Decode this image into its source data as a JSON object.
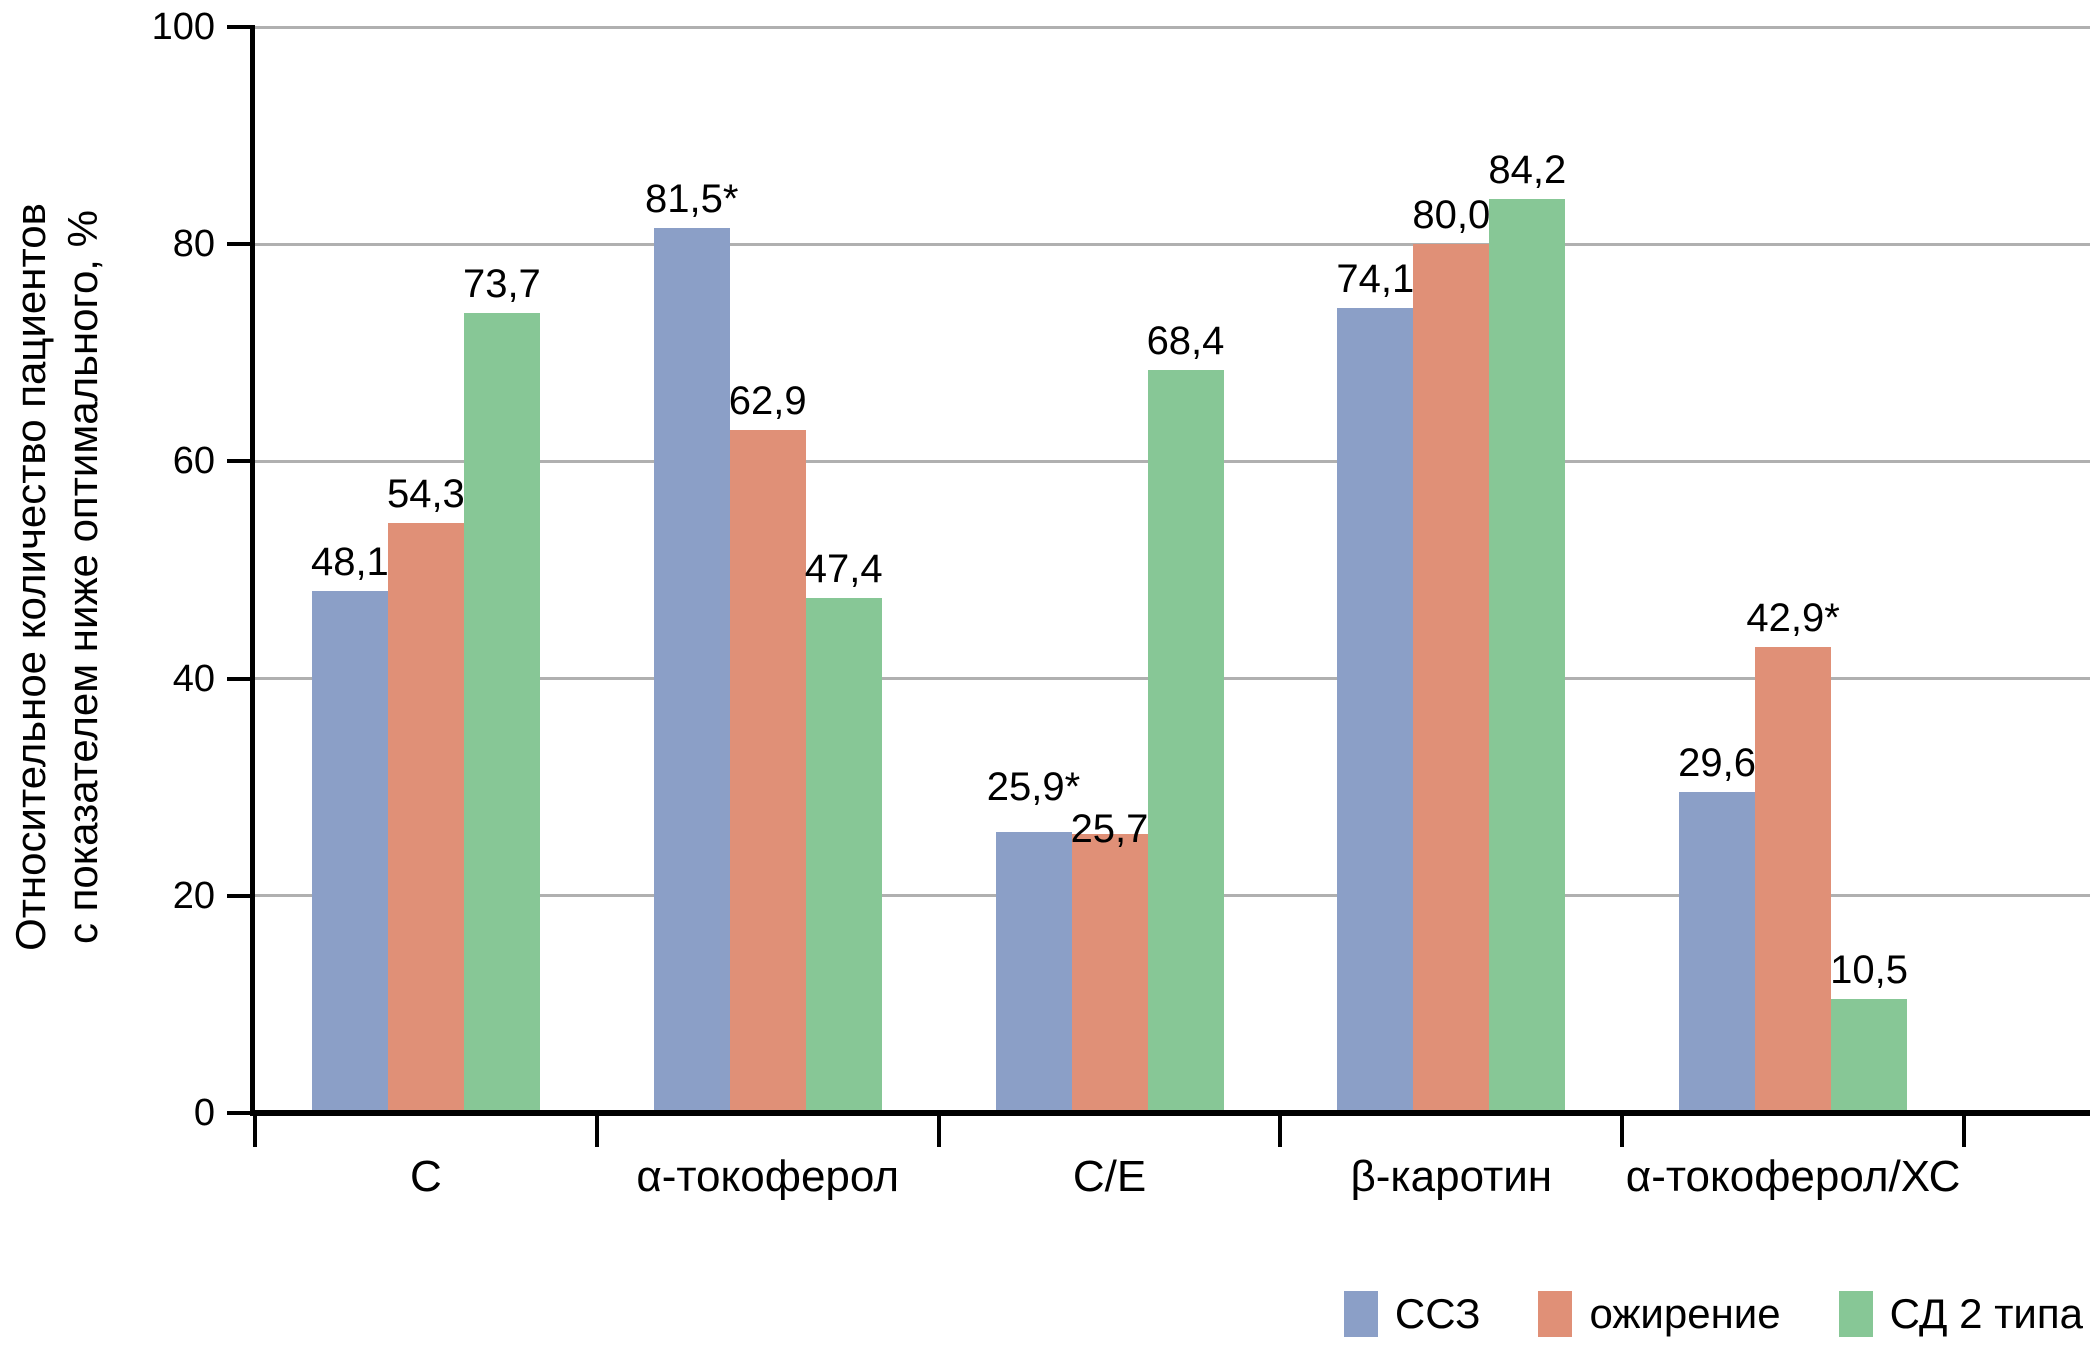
{
  "chart_data": {
    "type": "bar",
    "title": "",
    "categories": [
      "С",
      "α-токоферол",
      "С/Е",
      "β-каротин",
      "α-токоферол/ХС"
    ],
    "series": [
      {
        "name": "ССЗ",
        "color": "#8B9FC7",
        "values": [
          48.1,
          81.5,
          25.9,
          74.1,
          29.6
        ],
        "point_labels": [
          "48,1",
          "81,5*",
          "25,9*",
          "74,1",
          "29,6"
        ],
        "label_dy": [
          0,
          0,
          -16,
          0,
          0
        ]
      },
      {
        "name": "ожирение",
        "color": "#E09077",
        "values": [
          54.3,
          62.9,
          25.7,
          80.0,
          42.9
        ],
        "point_labels": [
          "54,3",
          "62,9",
          "25,7",
          "80,0",
          "42,9*"
        ],
        "label_dy": [
          0,
          0,
          24,
          0,
          0
        ]
      },
      {
        "name": "СД 2 типа",
        "color": "#87C796",
        "values": [
          73.7,
          47.4,
          68.4,
          84.2,
          10.5
        ],
        "point_labels": [
          "73,7",
          "47,4",
          "68,4",
          "84,2",
          "10,5"
        ],
        "label_dy": [
          0,
          0,
          0,
          0,
          0
        ]
      }
    ],
    "ylabel_lines": [
      "Относительное количество пациентов",
      "с показателем ниже оптимального, %"
    ],
    "xlabel": "",
    "ylim": [
      0,
      100
    ],
    "yticks": [
      0,
      20,
      40,
      60,
      80,
      100
    ],
    "grid": true,
    "legend_position": "bottom-right",
    "axis_color": "#000000",
    "grid_color": "#B0B0B0",
    "text_color": "#000000",
    "background_color": "#FFFFFF"
  }
}
